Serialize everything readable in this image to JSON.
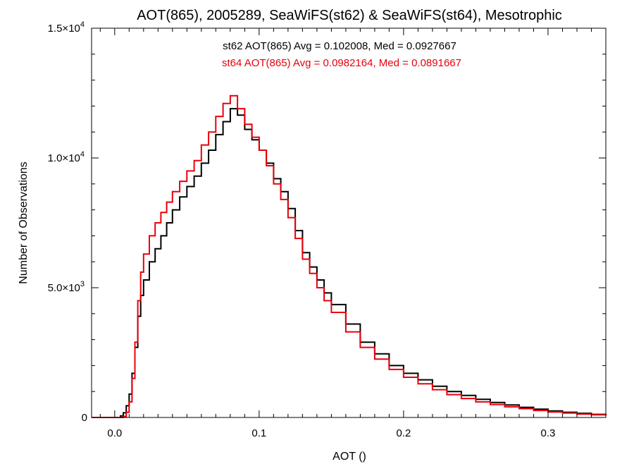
{
  "chart_data": {
    "type": "line",
    "title": "AOT(865), 2005289, SeaWiFS(st62) & SeaWiFS(st64), Mesotrophic",
    "xlabel": "AOT ()",
    "ylabel": "Number of Observations",
    "xlim": [
      -0.016,
      0.34
    ],
    "ylim": [
      0,
      15000
    ],
    "x_ticks": [
      {
        "value": 0.0,
        "label": "0.0"
      },
      {
        "value": 0.1,
        "label": "0.1"
      },
      {
        "value": 0.2,
        "label": "0.2"
      },
      {
        "value": 0.3,
        "label": "0.3"
      }
    ],
    "y_ticks": [
      {
        "value": 0,
        "mantissa": "0",
        "exponent": ""
      },
      {
        "value": 5000,
        "mantissa": "5.0×10",
        "exponent": "3"
      },
      {
        "value": 10000,
        "mantissa": "1.0×10",
        "exponent": "4"
      },
      {
        "value": 15000,
        "mantissa": "1.5×10",
        "exponent": "4"
      }
    ],
    "grid": false,
    "legend_position": "top-center",
    "series": [
      {
        "name": "st62",
        "label": "st62 AOT(865) Avg = 0.102008, Med = 0.0927667",
        "color": "#000000",
        "x": [
          -0.016,
          0.0,
          0.004,
          0.006,
          0.008,
          0.01,
          0.012,
          0.014,
          0.016,
          0.018,
          0.02,
          0.024,
          0.028,
          0.032,
          0.036,
          0.04,
          0.045,
          0.05,
          0.055,
          0.06,
          0.065,
          0.07,
          0.075,
          0.08,
          0.085,
          0.09,
          0.095,
          0.1,
          0.105,
          0.11,
          0.115,
          0.12,
          0.125,
          0.13,
          0.135,
          0.14,
          0.145,
          0.15,
          0.16,
          0.17,
          0.18,
          0.19,
          0.2,
          0.21,
          0.22,
          0.23,
          0.24,
          0.25,
          0.26,
          0.27,
          0.28,
          0.29,
          0.3,
          0.31,
          0.32,
          0.33,
          0.34
        ],
        "y": [
          0,
          0,
          60,
          180,
          450,
          900,
          1700,
          2700,
          3900,
          4700,
          5300,
          6000,
          6500,
          7000,
          7500,
          8000,
          8500,
          8900,
          9300,
          9800,
          10300,
          10900,
          11400,
          11900,
          11650,
          11100,
          10700,
          10300,
          9800,
          9200,
          8700,
          8050,
          7200,
          6350,
          5800,
          5300,
          4800,
          4350,
          3600,
          2900,
          2450,
          2000,
          1700,
          1450,
          1200,
          1000,
          850,
          700,
          580,
          480,
          390,
          320,
          250,
          200,
          160,
          120,
          80
        ]
      },
      {
        "name": "st64",
        "label": "st64 AOT(865) Avg = 0.0982164, Med = 0.0891667",
        "color": "#e8000b",
        "x": [
          -0.016,
          0.0,
          0.004,
          0.006,
          0.008,
          0.01,
          0.012,
          0.014,
          0.016,
          0.018,
          0.02,
          0.024,
          0.028,
          0.032,
          0.036,
          0.04,
          0.045,
          0.05,
          0.055,
          0.06,
          0.065,
          0.07,
          0.075,
          0.08,
          0.085,
          0.09,
          0.095,
          0.1,
          0.105,
          0.11,
          0.115,
          0.12,
          0.125,
          0.13,
          0.135,
          0.14,
          0.145,
          0.15,
          0.16,
          0.17,
          0.18,
          0.19,
          0.2,
          0.21,
          0.22,
          0.23,
          0.24,
          0.25,
          0.26,
          0.27,
          0.28,
          0.29,
          0.3,
          0.31,
          0.32,
          0.33,
          0.34
        ],
        "y": [
          0,
          0,
          0,
          40,
          200,
          600,
          1500,
          2900,
          4500,
          5600,
          6300,
          7000,
          7500,
          7900,
          8300,
          8700,
          9100,
          9500,
          9900,
          10500,
          11000,
          11600,
          12100,
          12400,
          11900,
          11300,
          10800,
          10300,
          9700,
          9000,
          8400,
          7700,
          6900,
          6100,
          5550,
          5000,
          4500,
          4050,
          3300,
          2700,
          2250,
          1850,
          1550,
          1300,
          1070,
          880,
          730,
          600,
          500,
          410,
          340,
          270,
          210,
          170,
          130,
          100,
          70
        ]
      }
    ]
  }
}
